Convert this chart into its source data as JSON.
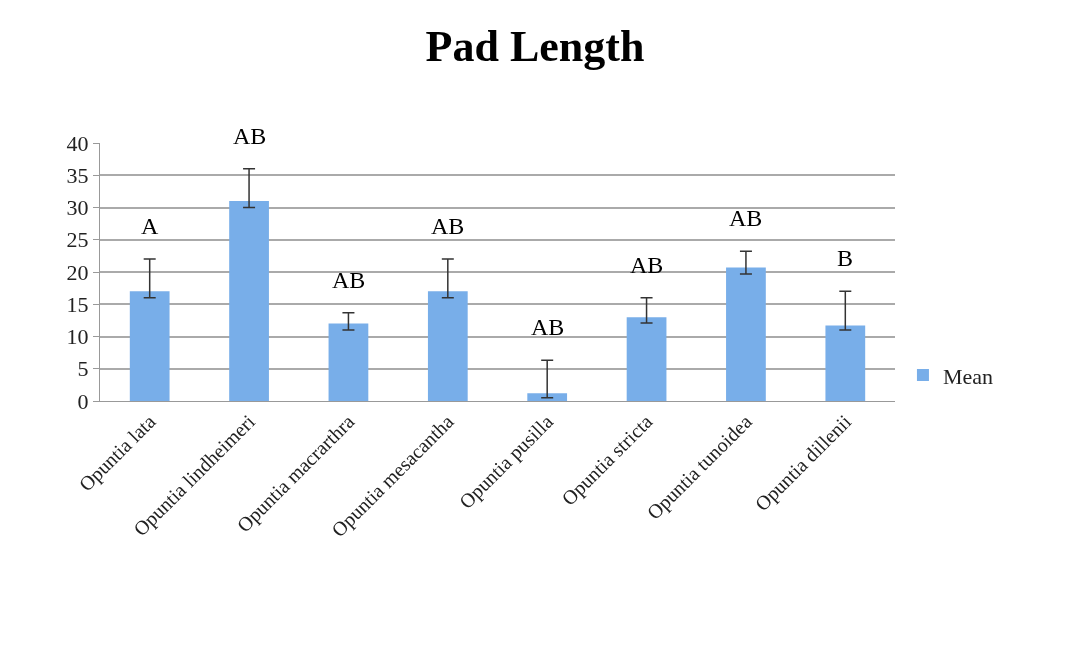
{
  "chart_data": {
    "type": "bar",
    "title": "Pad Length",
    "categories": [
      "Opuntia lata",
      "Opuntia lindheimeri",
      "Opuntia macrarthra",
      "Opuntia mesacantha",
      "Opuntia pusilla",
      "Opuntia stricta",
      "Opuntia tunoidea",
      "Opuntia dillenii"
    ],
    "series": [
      {
        "name": "Mean",
        "color": "#78aee9",
        "values": [
          17,
          31,
          12,
          17,
          1.2,
          13,
          20.7,
          11.7
        ],
        "errors": [
          [
            16,
            22
          ],
          [
            30,
            36
          ],
          [
            11,
            13.7
          ],
          [
            16,
            22
          ],
          [
            0.5,
            6.3
          ],
          [
            12.1,
            16
          ],
          [
            19.7,
            23.2
          ],
          [
            11,
            17
          ]
        ]
      }
    ],
    "annotations": [
      {
        "text": "A",
        "x": "Opuntia lata",
        "y": 22
      },
      {
        "text": "AB",
        "x": "Opuntia lindheimeri",
        "y": 36
      },
      {
        "text": "AB",
        "x": "Opuntia macrarthra",
        "y": 13.7
      },
      {
        "text": "AB",
        "x": "Opuntia mesacantha",
        "y": 22
      },
      {
        "text": "AB",
        "x": "Opuntia pusilla",
        "y": 6.3
      },
      {
        "text": "AB",
        "x": "Opuntia stricta",
        "y": 16
      },
      {
        "text": "AB",
        "x": "Opuntia tunoidea",
        "y": 23.2
      },
      {
        "text": "B",
        "x": "Opuntia dillenii",
        "y": 17
      }
    ],
    "ylim": [
      0,
      40
    ],
    "yticks": [
      0,
      5,
      10,
      15,
      20,
      25,
      30,
      35,
      40
    ],
    "grid": "y",
    "legend": "right"
  }
}
